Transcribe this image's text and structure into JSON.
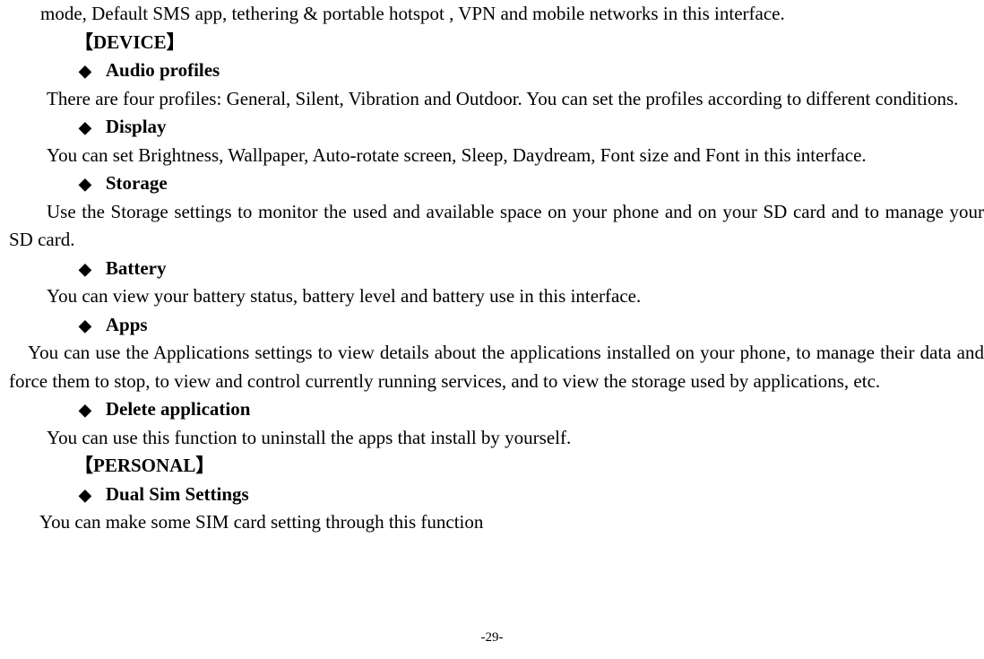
{
  "page": {
    "background_color": "#ffffff",
    "text_color": "#000000",
    "font_family": "Times New Roman",
    "body_font_size": 21,
    "page_number_font_size": 15
  },
  "content": {
    "top_line": "mode, Default SMS app, tethering & portable hotspot , VPN and mobile networks in this interface.",
    "section_device": "【DEVICE】",
    "audio_profiles_heading": "Audio profiles",
    "audio_profiles_body": "There are four profiles: General, Silent, Vibration and Outdoor. You can set the profiles according to different conditions.",
    "display_heading": "Display",
    "display_body": "You can set Brightness, Wallpaper, Auto-rotate screen, Sleep, Daydream, Font size and Font in this interface.",
    "storage_heading": "Storage",
    "storage_body": "Use the Storage settings to monitor the used and available space on your phone and on your SD card and to manage your SD card.",
    "battery_heading": "Battery",
    "battery_body": "You can view your battery status, battery level and battery use in this interface.",
    "apps_heading": "Apps",
    "apps_body": "You can use the Applications settings to view details about the applications installed on your phone, to manage their data and force them to stop, to view and control currently running services, and to view the storage used by applications, etc.",
    "delete_app_heading": "Delete application",
    "delete_app_body": "You can use this function to uninstall the apps that install by yourself.",
    "section_personal": "【PERSONAL】",
    "dual_sim_heading": "Dual Sim Settings",
    "dual_sim_body": "You can make some SIM card setting through this function",
    "page_number": "-29-"
  },
  "bullet_symbol": "◆"
}
